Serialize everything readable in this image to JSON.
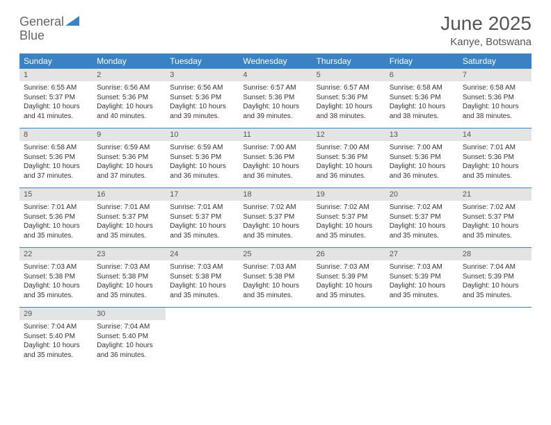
{
  "logo": {
    "word1": "General",
    "word2": "Blue"
  },
  "title": "June 2025",
  "location": "Kanye, Botswana",
  "colors": {
    "header_bg": "#3b82c4",
    "header_text": "#ffffff",
    "daynum_bg": "#e4e4e4",
    "text": "#333333",
    "logo_gray": "#666666",
    "logo_blue": "#3b82c4"
  },
  "fonts": {
    "title_pt": 28,
    "location_pt": 15,
    "dow_pt": 12,
    "daynum_pt": 11,
    "body_pt": 10
  },
  "days_of_week": [
    "Sunday",
    "Monday",
    "Tuesday",
    "Wednesday",
    "Thursday",
    "Friday",
    "Saturday"
  ],
  "weeks": [
    [
      {
        "n": "1",
        "sunrise": "6:55 AM",
        "sunset": "5:37 PM",
        "daylight": "10 hours and 41 minutes."
      },
      {
        "n": "2",
        "sunrise": "6:56 AM",
        "sunset": "5:36 PM",
        "daylight": "10 hours and 40 minutes."
      },
      {
        "n": "3",
        "sunrise": "6:56 AM",
        "sunset": "5:36 PM",
        "daylight": "10 hours and 39 minutes."
      },
      {
        "n": "4",
        "sunrise": "6:57 AM",
        "sunset": "5:36 PM",
        "daylight": "10 hours and 39 minutes."
      },
      {
        "n": "5",
        "sunrise": "6:57 AM",
        "sunset": "5:36 PM",
        "daylight": "10 hours and 38 minutes."
      },
      {
        "n": "6",
        "sunrise": "6:58 AM",
        "sunset": "5:36 PM",
        "daylight": "10 hours and 38 minutes."
      },
      {
        "n": "7",
        "sunrise": "6:58 AM",
        "sunset": "5:36 PM",
        "daylight": "10 hours and 38 minutes."
      }
    ],
    [
      {
        "n": "8",
        "sunrise": "6:58 AM",
        "sunset": "5:36 PM",
        "daylight": "10 hours and 37 minutes."
      },
      {
        "n": "9",
        "sunrise": "6:59 AM",
        "sunset": "5:36 PM",
        "daylight": "10 hours and 37 minutes."
      },
      {
        "n": "10",
        "sunrise": "6:59 AM",
        "sunset": "5:36 PM",
        "daylight": "10 hours and 36 minutes."
      },
      {
        "n": "11",
        "sunrise": "7:00 AM",
        "sunset": "5:36 PM",
        "daylight": "10 hours and 36 minutes."
      },
      {
        "n": "12",
        "sunrise": "7:00 AM",
        "sunset": "5:36 PM",
        "daylight": "10 hours and 36 minutes."
      },
      {
        "n": "13",
        "sunrise": "7:00 AM",
        "sunset": "5:36 PM",
        "daylight": "10 hours and 36 minutes."
      },
      {
        "n": "14",
        "sunrise": "7:01 AM",
        "sunset": "5:36 PM",
        "daylight": "10 hours and 35 minutes."
      }
    ],
    [
      {
        "n": "15",
        "sunrise": "7:01 AM",
        "sunset": "5:36 PM",
        "daylight": "10 hours and 35 minutes."
      },
      {
        "n": "16",
        "sunrise": "7:01 AM",
        "sunset": "5:37 PM",
        "daylight": "10 hours and 35 minutes."
      },
      {
        "n": "17",
        "sunrise": "7:01 AM",
        "sunset": "5:37 PM",
        "daylight": "10 hours and 35 minutes."
      },
      {
        "n": "18",
        "sunrise": "7:02 AM",
        "sunset": "5:37 PM",
        "daylight": "10 hours and 35 minutes."
      },
      {
        "n": "19",
        "sunrise": "7:02 AM",
        "sunset": "5:37 PM",
        "daylight": "10 hours and 35 minutes."
      },
      {
        "n": "20",
        "sunrise": "7:02 AM",
        "sunset": "5:37 PM",
        "daylight": "10 hours and 35 minutes."
      },
      {
        "n": "21",
        "sunrise": "7:02 AM",
        "sunset": "5:37 PM",
        "daylight": "10 hours and 35 minutes."
      }
    ],
    [
      {
        "n": "22",
        "sunrise": "7:03 AM",
        "sunset": "5:38 PM",
        "daylight": "10 hours and 35 minutes."
      },
      {
        "n": "23",
        "sunrise": "7:03 AM",
        "sunset": "5:38 PM",
        "daylight": "10 hours and 35 minutes."
      },
      {
        "n": "24",
        "sunrise": "7:03 AM",
        "sunset": "5:38 PM",
        "daylight": "10 hours and 35 minutes."
      },
      {
        "n": "25",
        "sunrise": "7:03 AM",
        "sunset": "5:38 PM",
        "daylight": "10 hours and 35 minutes."
      },
      {
        "n": "26",
        "sunrise": "7:03 AM",
        "sunset": "5:39 PM",
        "daylight": "10 hours and 35 minutes."
      },
      {
        "n": "27",
        "sunrise": "7:03 AM",
        "sunset": "5:39 PM",
        "daylight": "10 hours and 35 minutes."
      },
      {
        "n": "28",
        "sunrise": "7:04 AM",
        "sunset": "5:39 PM",
        "daylight": "10 hours and 35 minutes."
      }
    ],
    [
      {
        "n": "29",
        "sunrise": "7:04 AM",
        "sunset": "5:40 PM",
        "daylight": "10 hours and 35 minutes."
      },
      {
        "n": "30",
        "sunrise": "7:04 AM",
        "sunset": "5:40 PM",
        "daylight": "10 hours and 36 minutes."
      },
      null,
      null,
      null,
      null,
      null
    ]
  ],
  "labels": {
    "sunrise": "Sunrise:",
    "sunset": "Sunset:",
    "daylight": "Daylight:"
  }
}
